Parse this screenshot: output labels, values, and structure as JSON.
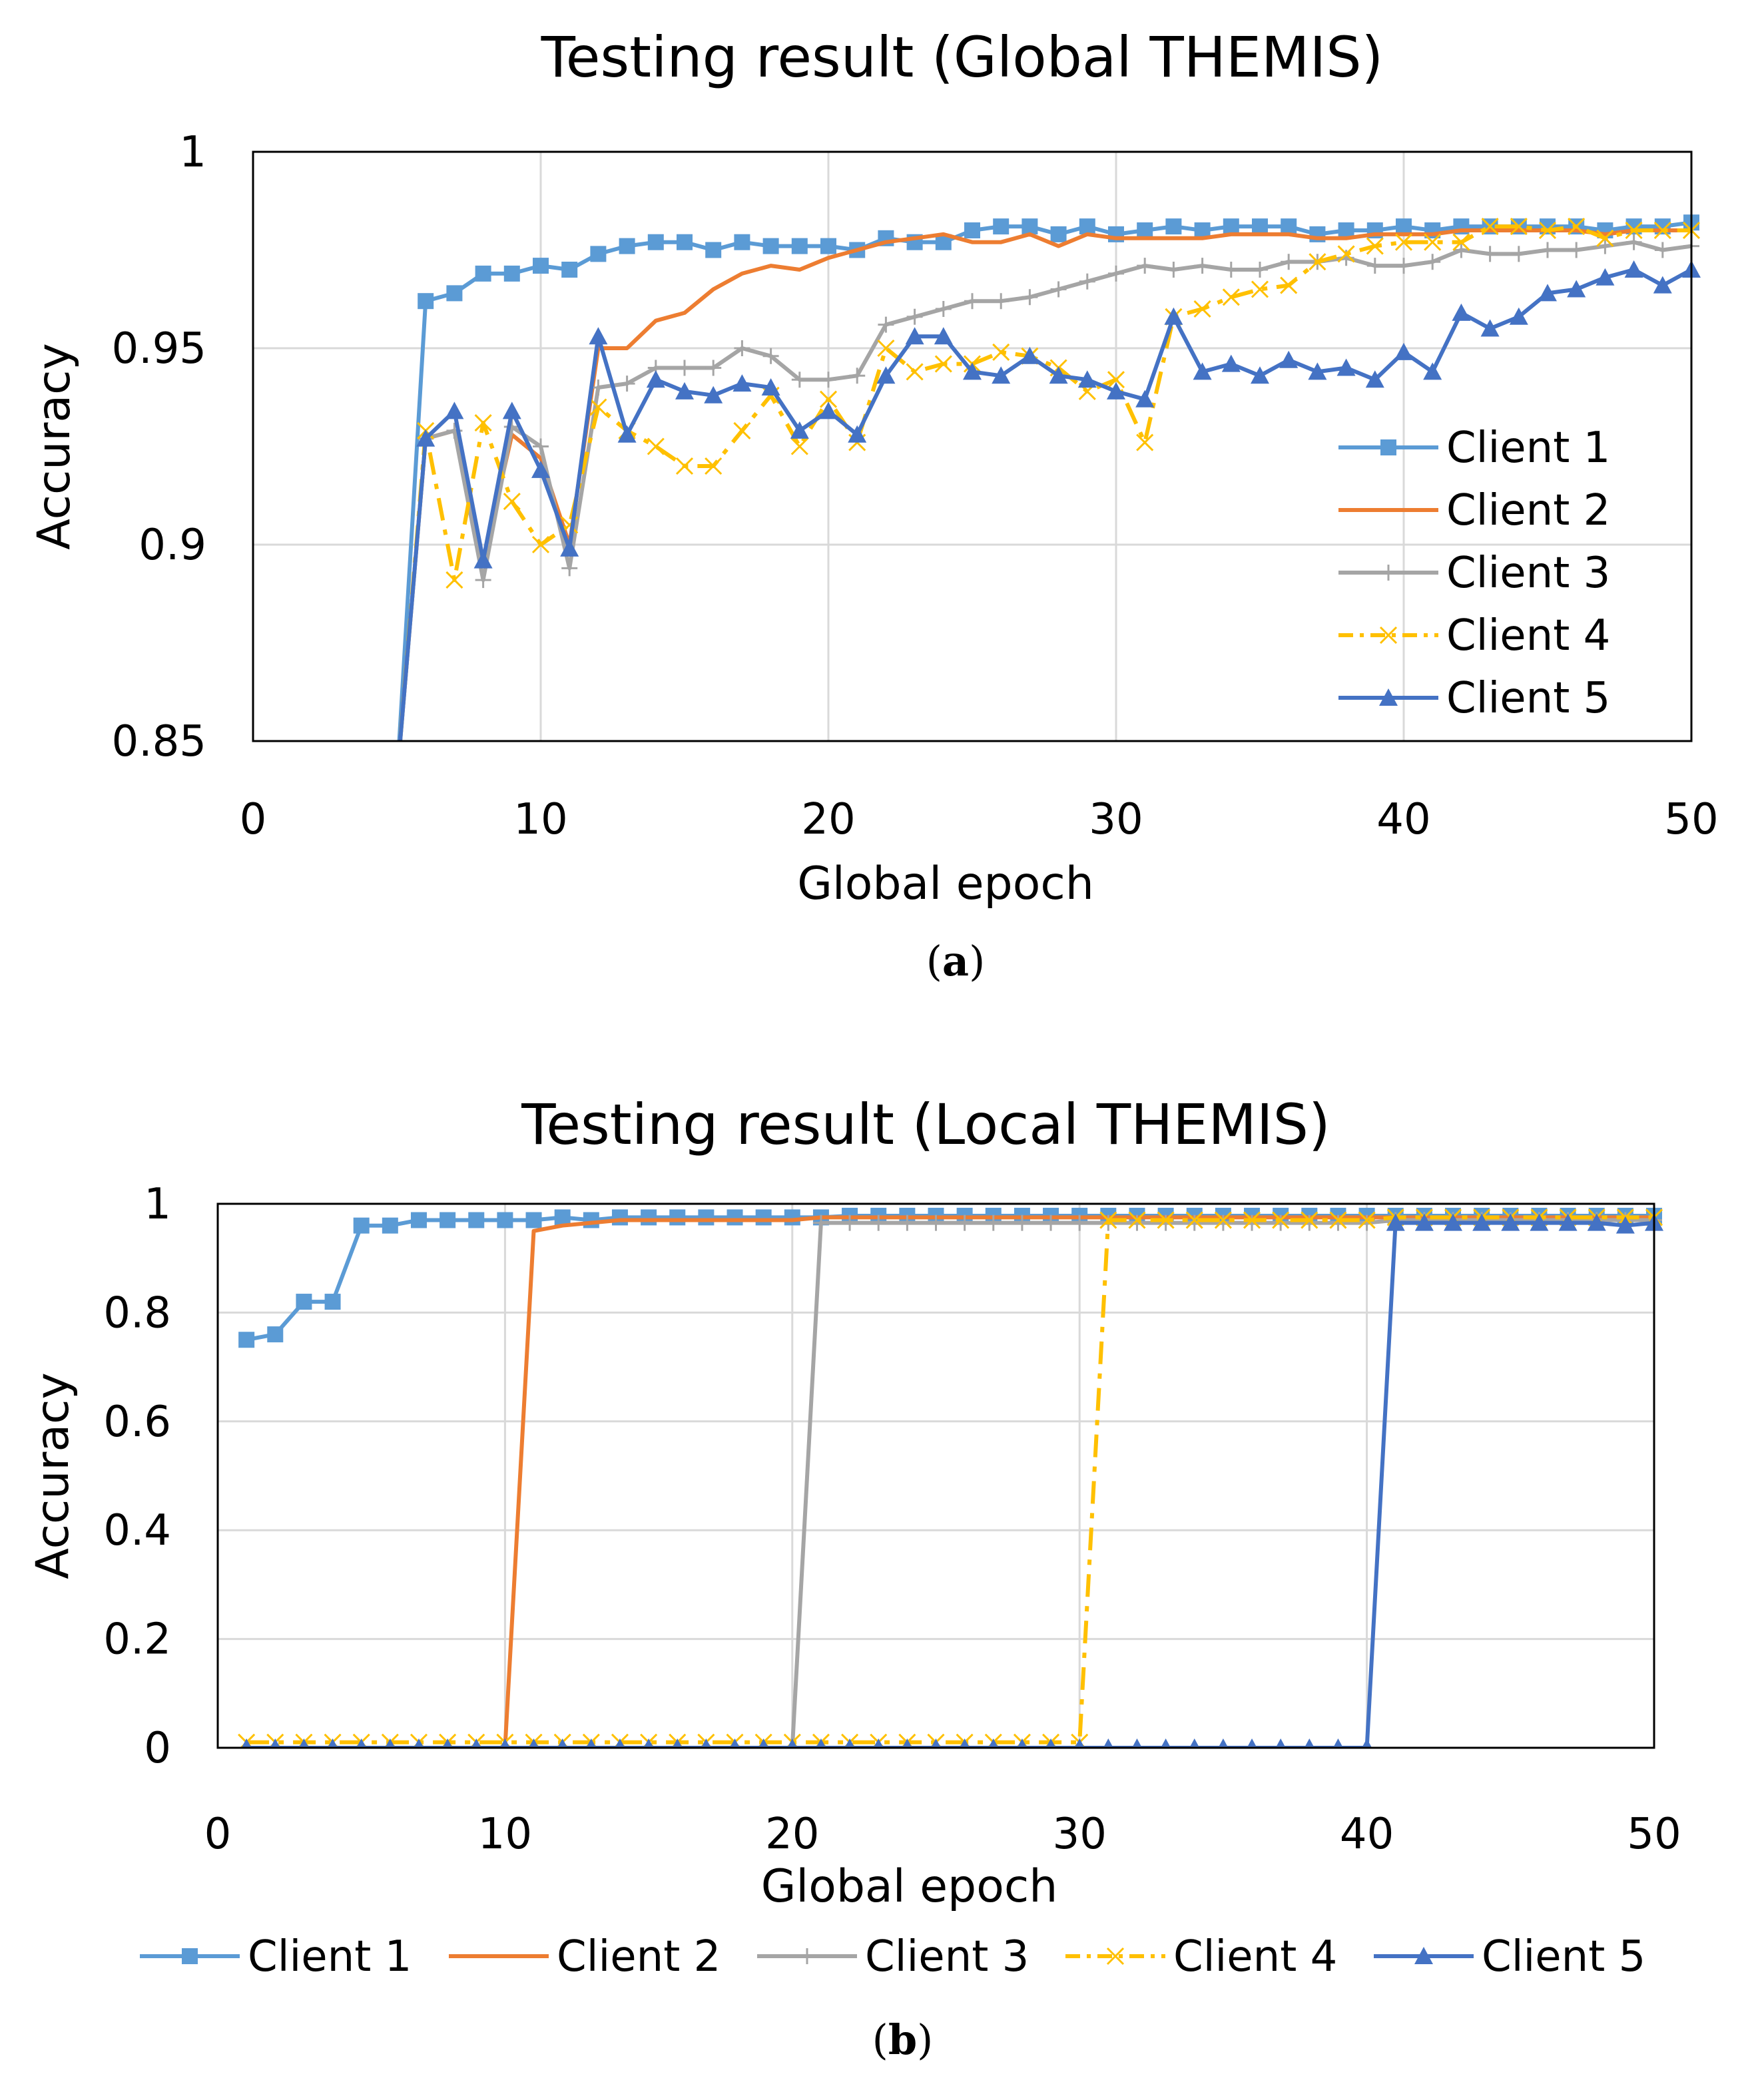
{
  "series_styles": [
    {
      "name": "Client 1",
      "color": "#5B9BD5",
      "marker": "square",
      "dash": "solid"
    },
    {
      "name": "Client 2",
      "color": "#ED7D31",
      "marker": "none",
      "dash": "solid"
    },
    {
      "name": "Client 3",
      "color": "#A5A5A5",
      "marker": "plus",
      "dash": "solid"
    },
    {
      "name": "Client 4",
      "color": "#FFC000",
      "marker": "x",
      "dash": "dashdot"
    },
    {
      "name": "Client 5",
      "color": "#4472C4",
      "marker": "triangle",
      "dash": "solid"
    }
  ],
  "chart_data": [
    {
      "type": "line",
      "title": "Testing result (Global THEMIS)",
      "caption_letter": "a",
      "xlabel": "Global epoch",
      "ylabel": "Accuracy",
      "xlim": [
        0,
        50
      ],
      "ylim": [
        0.85,
        1
      ],
      "xticks": [
        0,
        10,
        20,
        30,
        40,
        50
      ],
      "yticks": [
        0.85,
        0.9,
        0.95,
        1
      ],
      "ytick_labels": [
        "0.85",
        "0.9",
        "0.95",
        "1"
      ],
      "grid": true,
      "legend_position": "inside-bottom-right",
      "series": [
        {
          "name": "Client 1",
          "x": [
            5,
            6,
            7,
            8,
            9,
            10,
            11,
            12,
            13,
            14,
            15,
            16,
            17,
            18,
            19,
            20,
            21,
            22,
            23,
            24,
            25,
            26,
            27,
            28,
            29,
            30,
            31,
            32,
            33,
            34,
            35,
            36,
            37,
            38,
            39,
            40,
            41,
            42,
            43,
            44,
            45,
            46,
            47,
            48,
            49,
            50
          ],
          "values": [
            0.84,
            0.962,
            0.964,
            0.969,
            0.969,
            0.971,
            0.97,
            0.974,
            0.976,
            0.977,
            0.977,
            0.975,
            0.977,
            0.976,
            0.976,
            0.976,
            0.975,
            0.978,
            0.977,
            0.977,
            0.98,
            0.981,
            0.981,
            0.979,
            0.981,
            0.979,
            0.98,
            0.981,
            0.98,
            0.981,
            0.981,
            0.981,
            0.979,
            0.98,
            0.98,
            0.981,
            0.98,
            0.981,
            0.981,
            0.981,
            0.981,
            0.981,
            0.98,
            0.981,
            0.981,
            0.982
          ]
        },
        {
          "name": "Client 2",
          "x": [
            5,
            6,
            7,
            8,
            9,
            10,
            11,
            12,
            13,
            14,
            15,
            16,
            17,
            18,
            19,
            20,
            21,
            22,
            23,
            24,
            25,
            26,
            27,
            28,
            29,
            30,
            31,
            32,
            33,
            34,
            35,
            36,
            37,
            38,
            39,
            40,
            41,
            42,
            43,
            44,
            45,
            46,
            47,
            48,
            49,
            50
          ],
          "values": [
            0.84,
            0.927,
            0.929,
            0.896,
            0.928,
            0.922,
            0.9,
            0.95,
            0.95,
            0.957,
            0.959,
            0.965,
            0.969,
            0.971,
            0.97,
            0.973,
            0.975,
            0.977,
            0.978,
            0.979,
            0.977,
            0.977,
            0.979,
            0.976,
            0.979,
            0.978,
            0.978,
            0.978,
            0.978,
            0.979,
            0.979,
            0.979,
            0.978,
            0.978,
            0.979,
            0.979,
            0.979,
            0.98,
            0.98,
            0.98,
            0.98,
            0.98,
            0.979,
            0.98,
            0.98,
            0.98
          ]
        },
        {
          "name": "Client 3",
          "x": [
            5,
            6,
            7,
            8,
            9,
            10,
            11,
            12,
            13,
            14,
            15,
            16,
            17,
            18,
            19,
            20,
            21,
            22,
            23,
            24,
            25,
            26,
            27,
            28,
            29,
            30,
            31,
            32,
            33,
            34,
            35,
            36,
            37,
            38,
            39,
            40,
            41,
            42,
            43,
            44,
            45,
            46,
            47,
            48,
            49,
            50
          ],
          "values": [
            0.84,
            0.927,
            0.929,
            0.891,
            0.93,
            0.925,
            0.894,
            0.94,
            0.941,
            0.945,
            0.945,
            0.945,
            0.95,
            0.948,
            0.942,
            0.942,
            0.943,
            0.956,
            0.958,
            0.96,
            0.962,
            0.962,
            0.963,
            0.965,
            0.967,
            0.969,
            0.971,
            0.97,
            0.971,
            0.97,
            0.97,
            0.972,
            0.972,
            0.973,
            0.971,
            0.971,
            0.972,
            0.975,
            0.974,
            0.974,
            0.975,
            0.975,
            0.976,
            0.977,
            0.975,
            0.976
          ]
        },
        {
          "name": "Client 4",
          "x": [
            5,
            6,
            7,
            8,
            9,
            10,
            11,
            12,
            13,
            14,
            15,
            16,
            17,
            18,
            19,
            20,
            21,
            22,
            23,
            24,
            25,
            26,
            27,
            28,
            29,
            30,
            31,
            32,
            33,
            34,
            35,
            36,
            37,
            38,
            39,
            40,
            41,
            42,
            43,
            44,
            45,
            46,
            47,
            48,
            49,
            50
          ],
          "values": [
            0.84,
            0.929,
            0.891,
            0.931,
            0.911,
            0.9,
            0.905,
            0.935,
            0.929,
            0.925,
            0.92,
            0.92,
            0.929,
            0.938,
            0.925,
            0.937,
            0.926,
            0.95,
            0.944,
            0.946,
            0.946,
            0.949,
            0.948,
            0.945,
            0.939,
            0.942,
            0.926,
            0.958,
            0.96,
            0.963,
            0.965,
            0.966,
            0.972,
            0.974,
            0.976,
            0.977,
            0.977,
            0.977,
            0.981,
            0.981,
            0.98,
            0.981,
            0.978,
            0.98,
            0.98,
            0.98
          ]
        },
        {
          "name": "Client 5",
          "x": [
            5,
            6,
            7,
            8,
            9,
            10,
            11,
            12,
            13,
            14,
            15,
            16,
            17,
            18,
            19,
            20,
            21,
            22,
            23,
            24,
            25,
            26,
            27,
            28,
            29,
            30,
            31,
            32,
            33,
            34,
            35,
            36,
            37,
            38,
            39,
            40,
            41,
            42,
            43,
            44,
            45,
            46,
            47,
            48,
            49,
            50
          ],
          "values": [
            0.84,
            0.927,
            0.934,
            0.896,
            0.934,
            0.919,
            0.899,
            0.953,
            0.928,
            0.942,
            0.939,
            0.938,
            0.941,
            0.94,
            0.929,
            0.934,
            0.928,
            0.943,
            0.953,
            0.953,
            0.944,
            0.943,
            0.948,
            0.943,
            0.942,
            0.939,
            0.937,
            0.958,
            0.944,
            0.946,
            0.943,
            0.947,
            0.944,
            0.945,
            0.942,
            0.949,
            0.944,
            0.959,
            0.955,
            0.958,
            0.964,
            0.965,
            0.968,
            0.97,
            0.966,
            0.97
          ]
        }
      ]
    },
    {
      "type": "line",
      "title": "Testing result (Local THEMIS)",
      "caption_letter": "b",
      "xlabel": "Global epoch",
      "ylabel": "Accuracy",
      "xlim": [
        0,
        50
      ],
      "ylim": [
        0,
        1
      ],
      "xticks": [
        0,
        10,
        20,
        30,
        40,
        50
      ],
      "yticks": [
        0,
        0.2,
        0.4,
        0.6,
        0.8,
        1
      ],
      "ytick_labels": [
        "0",
        "0.2",
        "0.4",
        "0.6",
        "0.8",
        "1"
      ],
      "grid": true,
      "legend_position": "bottom",
      "series": [
        {
          "name": "Client 1",
          "x": [
            1,
            2,
            3,
            4,
            5,
            6,
            7,
            8,
            9,
            10,
            11,
            12,
            13,
            14,
            15,
            16,
            17,
            18,
            19,
            20,
            21,
            22,
            23,
            24,
            25,
            26,
            27,
            28,
            29,
            30,
            31,
            32,
            33,
            34,
            35,
            36,
            37,
            38,
            39,
            40,
            41,
            42,
            43,
            44,
            45,
            46,
            47,
            48,
            49,
            50
          ],
          "values": [
            0.75,
            0.76,
            0.82,
            0.82,
            0.96,
            0.96,
            0.97,
            0.97,
            0.97,
            0.97,
            0.97,
            0.975,
            0.97,
            0.975,
            0.975,
            0.975,
            0.975,
            0.975,
            0.975,
            0.975,
            0.975,
            0.978,
            0.978,
            0.978,
            0.978,
            0.978,
            0.978,
            0.978,
            0.978,
            0.978,
            0.978,
            0.978,
            0.978,
            0.978,
            0.978,
            0.978,
            0.978,
            0.978,
            0.978,
            0.978,
            0.978,
            0.978,
            0.978,
            0.978,
            0.978,
            0.978,
            0.978,
            0.978,
            0.978,
            0.978
          ]
        },
        {
          "name": "Client 2",
          "x": [
            1,
            2,
            3,
            4,
            5,
            6,
            7,
            8,
            9,
            10,
            11,
            12,
            13,
            14,
            15,
            16,
            17,
            18,
            19,
            20,
            21,
            22,
            23,
            24,
            25,
            26,
            27,
            28,
            29,
            30,
            31,
            32,
            33,
            34,
            35,
            36,
            37,
            38,
            39,
            40,
            41,
            42,
            43,
            44,
            45,
            46,
            47,
            48,
            49,
            50
          ],
          "values": [
            0,
            0,
            0,
            0,
            0,
            0,
            0,
            0,
            0,
            0,
            0.95,
            0.96,
            0.965,
            0.97,
            0.97,
            0.97,
            0.97,
            0.97,
            0.97,
            0.97,
            0.975,
            0.975,
            0.975,
            0.975,
            0.975,
            0.975,
            0.975,
            0.975,
            0.975,
            0.975,
            0.975,
            0.975,
            0.975,
            0.975,
            0.975,
            0.975,
            0.975,
            0.975,
            0.975,
            0.975,
            0.975,
            0.975,
            0.975,
            0.975,
            0.975,
            0.975,
            0.975,
            0.975,
            0.975,
            0.975
          ]
        },
        {
          "name": "Client 3",
          "x": [
            1,
            2,
            3,
            4,
            5,
            6,
            7,
            8,
            9,
            10,
            11,
            12,
            13,
            14,
            15,
            16,
            17,
            18,
            19,
            20,
            21,
            22,
            23,
            24,
            25,
            26,
            27,
            28,
            29,
            30,
            31,
            32,
            33,
            34,
            35,
            36,
            37,
            38,
            39,
            40,
            41,
            42,
            43,
            44,
            45,
            46,
            47,
            48,
            49,
            50
          ],
          "values": [
            0,
            0,
            0,
            0,
            0,
            0,
            0,
            0,
            0,
            0,
            0,
            0,
            0,
            0,
            0,
            0,
            0,
            0,
            0,
            0,
            0.965,
            0.965,
            0.965,
            0.965,
            0.965,
            0.965,
            0.965,
            0.965,
            0.965,
            0.965,
            0.965,
            0.965,
            0.965,
            0.965,
            0.965,
            0.965,
            0.965,
            0.965,
            0.965,
            0.965,
            0.97,
            0.97,
            0.97,
            0.97,
            0.97,
            0.97,
            0.97,
            0.97,
            0.97,
            0.97
          ]
        },
        {
          "name": "Client 4",
          "x": [
            1,
            2,
            3,
            4,
            5,
            6,
            7,
            8,
            9,
            10,
            11,
            12,
            13,
            14,
            15,
            16,
            17,
            18,
            19,
            20,
            21,
            22,
            23,
            24,
            25,
            26,
            27,
            28,
            29,
            30,
            31,
            32,
            33,
            34,
            35,
            36,
            37,
            38,
            39,
            40,
            41,
            42,
            43,
            44,
            45,
            46,
            47,
            48,
            49,
            50
          ],
          "values": [
            0.01,
            0.01,
            0.01,
            0.01,
            0.01,
            0.01,
            0.01,
            0.01,
            0.01,
            0.01,
            0.01,
            0.01,
            0.01,
            0.01,
            0.01,
            0.01,
            0.01,
            0.01,
            0.01,
            0.01,
            0.01,
            0.01,
            0.01,
            0.01,
            0.01,
            0.01,
            0.01,
            0.01,
            0.01,
            0.01,
            0.97,
            0.97,
            0.97,
            0.97,
            0.97,
            0.97,
            0.97,
            0.97,
            0.97,
            0.97,
            0.975,
            0.975,
            0.975,
            0.975,
            0.975,
            0.975,
            0.975,
            0.975,
            0.975,
            0.975
          ]
        },
        {
          "name": "Client 5",
          "x": [
            1,
            2,
            3,
            4,
            5,
            6,
            7,
            8,
            9,
            10,
            11,
            12,
            13,
            14,
            15,
            16,
            17,
            18,
            19,
            20,
            21,
            22,
            23,
            24,
            25,
            26,
            27,
            28,
            29,
            30,
            31,
            32,
            33,
            34,
            35,
            36,
            37,
            38,
            39,
            40,
            41,
            42,
            43,
            44,
            45,
            46,
            47,
            48,
            49,
            50
          ],
          "values": [
            0,
            0,
            0,
            0,
            0,
            0,
            0,
            0,
            0,
            0,
            0,
            0,
            0,
            0,
            0,
            0,
            0,
            0,
            0,
            0,
            0,
            0,
            0,
            0,
            0,
            0,
            0,
            0,
            0,
            0,
            0,
            0,
            0,
            0,
            0,
            0,
            0,
            0,
            0,
            0,
            0.965,
            0.965,
            0.965,
            0.965,
            0.965,
            0.965,
            0.965,
            0.965,
            0.96,
            0.965
          ]
        }
      ]
    }
  ]
}
